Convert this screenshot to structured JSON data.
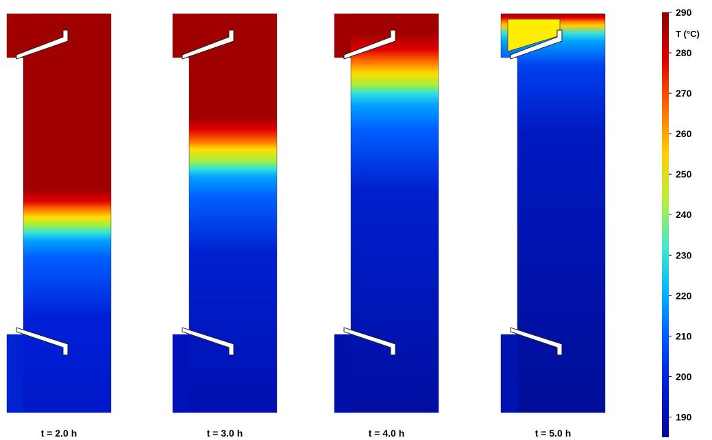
{
  "figure": {
    "panels": [
      {
        "id": "t2",
        "caption": "t = 2.0 h",
        "stops": [
          [
            "0%",
            "#a00000"
          ],
          [
            "44%",
            "#a00000"
          ],
          [
            "47%",
            "#e00000"
          ],
          [
            "49%",
            "#ff7000"
          ],
          [
            "51%",
            "#ffdd00"
          ],
          [
            "53%",
            "#a0f040"
          ],
          [
            "55%",
            "#30e0e0"
          ],
          [
            "57%",
            "#00a0ff"
          ],
          [
            "61%",
            "#0060ff"
          ],
          [
            "76%",
            "#0020d8"
          ],
          [
            "100%",
            "#0018c8"
          ]
        ],
        "top_region_fill": "#a00000",
        "bottom_region_fill": "#0022d0"
      },
      {
        "id": "t3",
        "caption": "t = 3.0 h",
        "stops": [
          [
            "0%",
            "#a00000"
          ],
          [
            "26%",
            "#a00000"
          ],
          [
            "29%",
            "#e00000"
          ],
          [
            "32%",
            "#ff7000"
          ],
          [
            "34%",
            "#ffdd00"
          ],
          [
            "37%",
            "#a0f040"
          ],
          [
            "39%",
            "#30e0e0"
          ],
          [
            "41%",
            "#00a0ff"
          ],
          [
            "46%",
            "#0060ff"
          ],
          [
            "60%",
            "#0020d0"
          ],
          [
            "100%",
            "#0010b0"
          ]
        ],
        "top_region_fill": "#a00000",
        "bottom_region_fill": "#0012b8"
      },
      {
        "id": "t4",
        "caption": "t = 4.0 h",
        "stops": [
          [
            "0%",
            "#a00000"
          ],
          [
            "5%",
            "#a00000"
          ],
          [
            "9%",
            "#e00000"
          ],
          [
            "12%",
            "#ff7000"
          ],
          [
            "15%",
            "#ffdd00"
          ],
          [
            "18%",
            "#a0f040"
          ],
          [
            "20%",
            "#30e0e0"
          ],
          [
            "23%",
            "#00a0ff"
          ],
          [
            "29%",
            "#0060ff"
          ],
          [
            "44%",
            "#0020d0"
          ],
          [
            "100%",
            "#000ea0"
          ]
        ],
        "top_region_fill": "#a00000",
        "bottom_region_fill": "#0010a8"
      },
      {
        "id": "t5",
        "caption": "t = 5.0 h",
        "stops": [
          [
            "0%",
            "#a00000"
          ],
          [
            "1%",
            "#e00000"
          ],
          [
            "2%",
            "#ff8000"
          ],
          [
            "3%",
            "#ffd000"
          ],
          [
            "5%",
            "#30e0e0"
          ],
          [
            "7%",
            "#00a0ff"
          ],
          [
            "13%",
            "#0040f0"
          ],
          [
            "30%",
            "#0018c0"
          ],
          [
            "100%",
            "#000e98"
          ]
        ],
        "top_region_fill": "#ffee00",
        "bottom_region_fill": "#0012b0"
      }
    ]
  },
  "colorbar": {
    "title": "T (°C)",
    "min": 185,
    "max": 290,
    "ticks": [
      290,
      280,
      270,
      260,
      250,
      240,
      230,
      220,
      210,
      200,
      190
    ],
    "colors": [
      "#8b0000",
      "#e00000",
      "#ff6a00",
      "#ffd000",
      "#b5f040",
      "#40e8d0",
      "#00b0ff",
      "#0050ff",
      "#0018d0",
      "#000c90"
    ]
  }
}
